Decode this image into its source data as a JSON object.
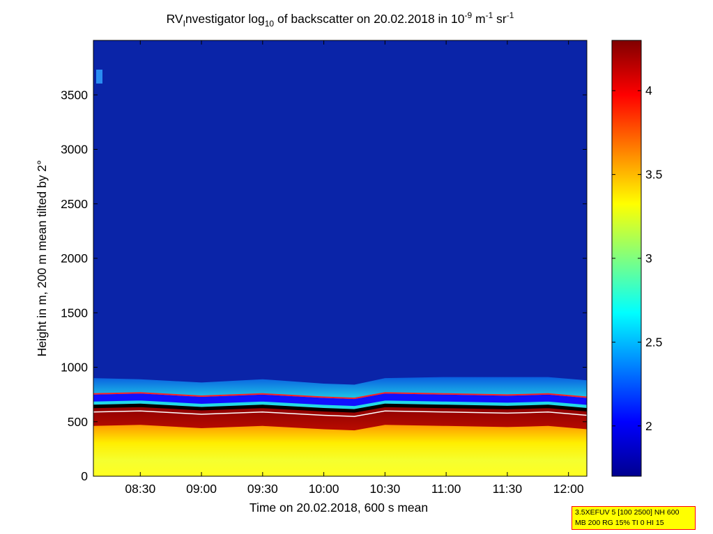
{
  "chart_data": {
    "type": "heatmap",
    "title": {
      "prefix": "RV",
      "sub_i": "I",
      "mid": "nvestigator log",
      "sub_10": "10",
      "after": " of backscatter on 20.02.2018 in 10",
      "sup_1": "-9",
      "unit_m": " m",
      "sup_2": "-1",
      "unit_sr": " sr",
      "sup_3": "-1"
    },
    "xlabel": "Time on 20.02.2018, 600 s mean",
    "ylabel": "Height in m, 200 m mean tilted by 2°",
    "x_range": [
      "08:07",
      "12:09"
    ],
    "x_ticks": [
      "08:30",
      "09:00",
      "09:30",
      "10:00",
      "10:30",
      "11:00",
      "11:30",
      "12:00"
    ],
    "y_range": [
      0,
      4000
    ],
    "y_ticks": [
      0,
      500,
      1000,
      1500,
      2000,
      2500,
      3000,
      3500
    ],
    "colorbar": {
      "range": [
        1.7,
        4.3
      ],
      "ticks": [
        "2",
        "2.5",
        "3",
        "3.5",
        "4"
      ],
      "colormap": "jet"
    },
    "layers": {
      "surface_level": 3.35,
      "near_cloud_base_level": 4.25,
      "cloud_top_level": 2.6,
      "free_troposphere_level": 1.8
    },
    "cloud_base_profile": {
      "times": [
        "08:07",
        "08:30",
        "09:00",
        "09:30",
        "10:00",
        "10:15",
        "10:30",
        "11:00",
        "11:30",
        "11:50",
        "12:09"
      ],
      "base_height": [
        640,
        650,
        620,
        640,
        610,
        600,
        650,
        640,
        630,
        640,
        610
      ],
      "top_height": [
        900,
        890,
        860,
        890,
        850,
        840,
        900,
        910,
        910,
        910,
        880
      ]
    }
  },
  "info_box": {
    "line1": "3.5XEFUV 5 [100 2500] NH 600",
    "line2": "MB 200 RG 15% TI 0 HI 15"
  },
  "colors": {
    "info_box_bg": "#ffff00",
    "info_box_border": "#ff0000"
  }
}
